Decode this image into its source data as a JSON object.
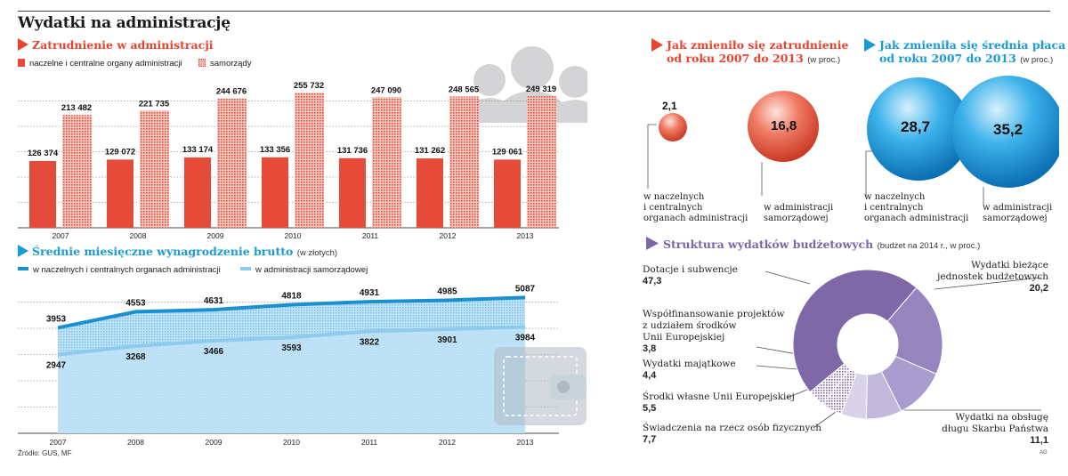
{
  "title": "Wydatki na administrację",
  "source": "Źródło: GUS, MF",
  "credit": "AG",
  "colors": {
    "red": "#e54b38",
    "blue": "#1a8fd1",
    "lightblue": "#8ccbee",
    "purple": "#7e68a8",
    "arrow_red": "#e8432f",
    "arrow_blue": "#1a9ad6",
    "arrow_purple": "#7b66a8"
  },
  "employment": {
    "title": "Zatrudnienie w administracji",
    "legend": [
      "naczelne i centralne organy administracji",
      "samorządy"
    ]
  },
  "salary": {
    "title": "Średnie miesięczne wynagrodzenie brutto",
    "unit": "(w złotych)",
    "legend": [
      "w naczelnych i centralnych organach administracji",
      "w administracji samorządowej"
    ]
  },
  "emp_change": {
    "title_line1": "Jak zmieniło się zatrudnienie",
    "title_line2": "od roku 2007 do 2013",
    "unit": "(w proc.)",
    "central_value": "2,1",
    "central_label": [
      "w naczelnych",
      "i centralnych",
      "organach administracji"
    ],
    "local_value": "16,8",
    "local_label": [
      "w administracji",
      "samorządowej"
    ]
  },
  "wage_change": {
    "title_line1": "Jak zmieniła się średnia płaca",
    "title_line2": "od roku 2007 do 2013",
    "unit": "(w proc.)",
    "central_value": "28,7",
    "central_label": [
      "w naczelnych",
      "i centralnych",
      "organach administracji"
    ],
    "local_value": "35,2",
    "local_label": [
      "w administracji",
      "samorządowej"
    ]
  },
  "budget": {
    "title": "Struktura wydatków budżetowych",
    "unit": "(budżet na 2014 r., w proc.)"
  },
  "chart_data": [
    {
      "type": "bar",
      "title": "Zatrudnienie w administracji",
      "categories": [
        "2007",
        "2008",
        "2009",
        "2010",
        "2011",
        "2012",
        "2013"
      ],
      "series": [
        {
          "name": "naczelne i centralne organy administracji",
          "values": [
            126374,
            129072,
            133174,
            133356,
            131736,
            131262,
            129061
          ],
          "labels": [
            "126 374",
            "129 072",
            "133 174",
            "133 356",
            "131 736",
            "131 262",
            "129 061"
          ]
        },
        {
          "name": "samorządy",
          "values": [
            213482,
            221735,
            244676,
            255732,
            247090,
            248565,
            249319
          ],
          "labels": [
            "213 482",
            "221 735",
            "244 676",
            "255 732",
            "247 090",
            "248 565",
            "249 319"
          ]
        }
      ],
      "ylim": [
        0,
        300000
      ]
    },
    {
      "type": "area",
      "title": "Średnie miesięczne wynagrodzenie brutto",
      "ylabel": "(w złotych)",
      "categories": [
        "2007",
        "2008",
        "2009",
        "2010",
        "2011",
        "2012",
        "2013"
      ],
      "series": [
        {
          "name": "w naczelnych i centralnych organach administracji",
          "values": [
            3953,
            4553,
            4631,
            4818,
            4931,
            4985,
            5087
          ]
        },
        {
          "name": "w administracji samorządowej",
          "values": [
            2947,
            3268,
            3466,
            3593,
            3822,
            3901,
            3984
          ]
        }
      ],
      "ylim": [
        0,
        6000
      ]
    },
    {
      "type": "bar",
      "title": "Jak zmieniło się zatrudnienie od roku 2007 do 2013",
      "categories": [
        "w naczelnych i centralnych organach administracji",
        "w administracji samorządowej"
      ],
      "values": [
        2.1,
        16.8
      ]
    },
    {
      "type": "bar",
      "title": "Jak zmieniła się średnia płaca od roku 2007 do 2013",
      "categories": [
        "w naczelnych i centralnych organach administracji",
        "w administracji samorządowej"
      ],
      "values": [
        28.7,
        35.2
      ]
    },
    {
      "type": "pie",
      "title": "Struktura wydatków budżetowych",
      "slices": [
        {
          "name": "Dotacje i subwencje",
          "name_lines": [
            "Dotacje i subwencje"
          ],
          "value": 47.3,
          "label": "47,3",
          "color": "#7e68a8",
          "pattern": false
        },
        {
          "name": "Wydatki bieżące jednostek budżetowych",
          "name_lines": [
            "Wydatki bieżące",
            "jednostek budżetowych"
          ],
          "value": 20.2,
          "label": "20,2",
          "color": "#9584bd",
          "pattern": false
        },
        {
          "name": "Wydatki na obsługę długu Skarbu Państwa",
          "name_lines": [
            "Wydatki na obsługę",
            "długu Skarbu Państwa"
          ],
          "value": 11.1,
          "label": "11,1",
          "color": "#a99cce",
          "pattern": false
        },
        {
          "name": "Świadczenia na rzecz osób fizycznych",
          "name_lines": [
            "Świadczenia na rzecz osób fizycznych"
          ],
          "value": 7.7,
          "label": "7,7",
          "color": "#c1b8dc",
          "pattern": false
        },
        {
          "name": "Środki własne Unii Europejskiej",
          "name_lines": [
            "Środki własne Unii Europejskiej"
          ],
          "value": 5.5,
          "label": "5,5",
          "color": "#d9d3ea",
          "pattern": false
        },
        {
          "name": "Wydatki majątkowe",
          "name_lines": [
            "Wydatki majątkowe"
          ],
          "value": 4.4,
          "label": "4,4",
          "color": "#a596c9",
          "pattern": true
        },
        {
          "name": "Współfinansowanie projektów z udziałem środków Unii Europejskiej",
          "name_lines": [
            "Współfinansowanie projektów",
            "z udziałem środków",
            "Unii Europejskiej"
          ],
          "value": 3.8,
          "label": "3,8",
          "color": "#7e68a8",
          "pattern": true
        }
      ]
    }
  ]
}
